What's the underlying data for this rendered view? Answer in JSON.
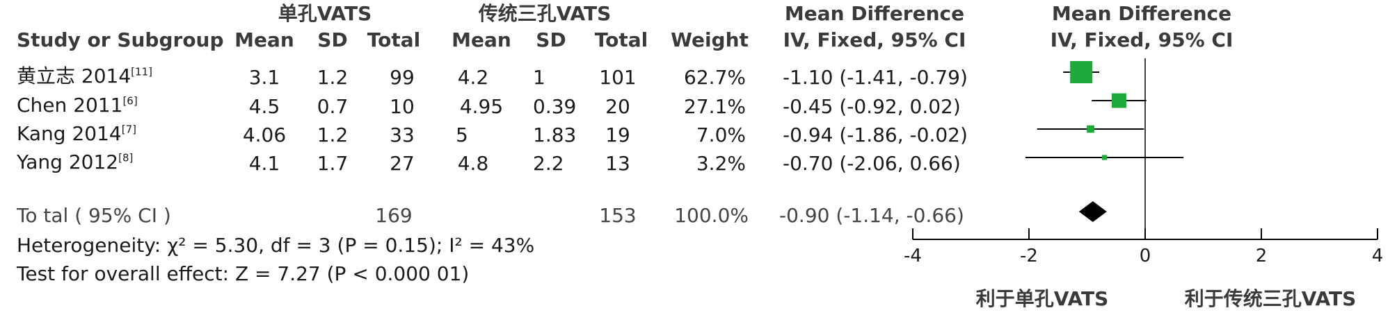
{
  "groups": {
    "experimental": "单孔VATS",
    "control": "传统三孔VATS",
    "effect_title": "Mean Difference",
    "plot_title": "Mean Difference"
  },
  "columns": {
    "study": "Study or Subgroup",
    "mean": "Mean",
    "sd": "SD",
    "total": "Total",
    "weight": "Weight",
    "effect": "IV, Fixed, 95% CI",
    "plot_effect": "IV, Fixed, 95% CI"
  },
  "studies": [
    {
      "name": "黄立志 2014",
      "ref": "[11]",
      "e_mean": "3.1",
      "e_sd": "1.2",
      "e_total": "99",
      "c_mean": "4.2",
      "c_sd": "1",
      "c_total": "101",
      "weight": "62.7%",
      "ci_text": "-1.10 (-1.41, -0.79)"
    },
    {
      "name": "Chen 2011",
      "ref": "[6]",
      "e_mean": "4.5",
      "e_sd": "0.7",
      "e_total": "10",
      "c_mean": "4.95",
      "c_sd": "0.39",
      "c_total": "20",
      "weight": "27.1%",
      "ci_text": "-0.45 (-0.92, 0.02)"
    },
    {
      "name": "Kang 2014",
      "ref": "[7]",
      "e_mean": "4.06",
      "e_sd": "1.2",
      "e_total": "33",
      "c_mean": "5",
      "c_sd": "1.83",
      "c_total": "19",
      "weight": "7.0%",
      "ci_text": "-0.94 (-1.86, -0.02)"
    },
    {
      "name": "Yang 2012",
      "ref": "[8]",
      "e_mean": "4.1",
      "e_sd": "1.7",
      "e_total": "27",
      "c_mean": "4.8",
      "c_sd": "2.2",
      "c_total": "13",
      "weight": "3.2%",
      "ci_text": "-0.70 (-2.06, 0.66)"
    }
  ],
  "total": {
    "label": "To tal ( 95% CI )",
    "e_total": "169",
    "c_total": "153",
    "weight": "100.0%",
    "ci_text": "-0.90 (-1.14, -0.66)"
  },
  "heterogeneity": "Heterogeneity:  χ² = 5.30, df = 3 (P = 0.15); I² = 43%",
  "overall_effect": "Test for overall effect: Z = 7.27 (P < 0.000 01)",
  "favours": {
    "left": "利于单孔VATS",
    "right": "利于传统三孔VATS"
  },
  "colors": {
    "study_marker": "#1fa83c",
    "diamond": "#000000",
    "line": "#000000"
  },
  "chart_data": {
    "type": "forest",
    "xlim": [
      -4,
      4
    ],
    "ticks": [
      -4,
      -2,
      0,
      2,
      4
    ],
    "tick_labels": [
      "-4",
      "-2",
      "0",
      "2",
      "4"
    ],
    "points": [
      {
        "study": "黄立志 2014",
        "md": -1.1,
        "lo": -1.41,
        "hi": -0.79,
        "weight": 62.7
      },
      {
        "study": "Chen 2011",
        "md": -0.45,
        "lo": -0.92,
        "hi": 0.02,
        "weight": 27.1
      },
      {
        "study": "Kang 2014",
        "md": -0.94,
        "lo": -1.86,
        "hi": -0.02,
        "weight": 7.0
      },
      {
        "study": "Yang 2012",
        "md": -0.7,
        "lo": -2.06,
        "hi": 0.66,
        "weight": 3.2
      }
    ],
    "pooled": {
      "md": -0.9,
      "lo": -1.14,
      "hi": -0.66
    }
  }
}
